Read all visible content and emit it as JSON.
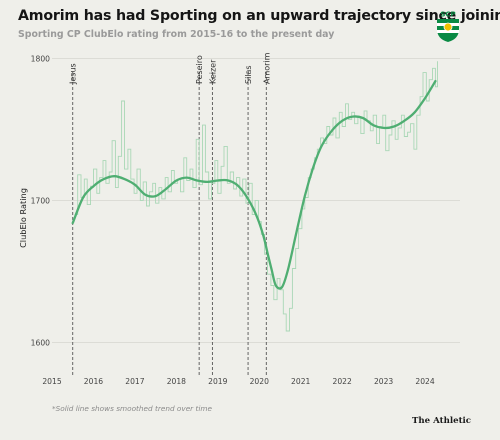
{
  "header": {
    "title": "Amorim has had Sporting on an upward trajectory since joining",
    "subtitle": "Sporting CP ClubElo rating from 2015-16 to the present day"
  },
  "footer": {
    "note": "*Solid line shows smoothed trend over time",
    "brand": "The Athletic"
  },
  "logo": {
    "text": "SCP",
    "icon": "sporting-cp-crest-icon",
    "primary_color": "#0a8a44"
  },
  "colors": {
    "background": "#efefea",
    "raw_line": "#a9d7b6",
    "trend_line": "#4fae72",
    "gridline": "#d6d6d0",
    "manager_line": "#555555"
  },
  "chart_data": {
    "type": "line",
    "title": "Amorim has had Sporting on an upward trajectory since joining",
    "subtitle": "Sporting CP ClubElo rating from 2015-16 to the present day",
    "xlabel": "",
    "ylabel": "ClubElo Rating",
    "xlim": [
      2015.0,
      2024.65
    ],
    "ylim": [
      1577,
      1808
    ],
    "x_ticks": [
      "2015",
      "2016",
      "2017",
      "2018",
      "2019",
      "2020",
      "2021",
      "2022",
      "2023",
      "2024"
    ],
    "y_ticks": [
      "1600",
      "1700",
      "1800"
    ],
    "grid": "horizontal",
    "annotations": [
      {
        "label": "Jesus",
        "x": 2015.5
      },
      {
        "label": "Peseiro",
        "x": 2018.55
      },
      {
        "label": "Keizer",
        "x": 2018.87
      },
      {
        "label": "Silas",
        "x": 2019.73
      },
      {
        "label": "Amorim",
        "x": 2020.17
      }
    ],
    "series": [
      {
        "style": "trend-solid",
        "x": [
          2015.5,
          2015.75,
          2016.0,
          2016.25,
          2016.5,
          2016.75,
          2017.0,
          2017.25,
          2017.5,
          2017.75,
          2018.0,
          2018.25,
          2018.5,
          2018.75,
          2019.0,
          2019.25,
          2019.5,
          2019.75,
          2019.95,
          2020.1,
          2020.2,
          2020.3,
          2020.4,
          2020.55,
          2020.7,
          2020.9,
          2021.1,
          2021.3,
          2021.5,
          2021.75,
          2022.0,
          2022.25,
          2022.5,
          2022.75,
          2023.0,
          2023.25,
          2023.5,
          2023.75,
          2024.0,
          2024.25
        ],
        "values": [
          1684,
          1702,
          1710,
          1715,
          1717,
          1715,
          1711,
          1704,
          1703,
          1708,
          1714,
          1716,
          1714,
          1713,
          1714,
          1714,
          1710,
          1700,
          1688,
          1675,
          1663,
          1651,
          1640,
          1639,
          1652,
          1678,
          1703,
          1723,
          1738,
          1749,
          1756,
          1759,
          1758,
          1753,
          1751,
          1752,
          1756,
          1762,
          1772,
          1784
        ]
      },
      {
        "style": "raw-thin",
        "x": [
          2015.55,
          2015.62,
          2015.7,
          2015.78,
          2015.85,
          2015.93,
          2016.0,
          2016.08,
          2016.15,
          2016.23,
          2016.3,
          2016.38,
          2016.45,
          2016.53,
          2016.6,
          2016.68,
          2016.75,
          2016.83,
          2016.9,
          2016.98,
          2017.05,
          2017.13,
          2017.2,
          2017.28,
          2017.35,
          2017.43,
          2017.5,
          2017.58,
          2017.65,
          2017.73,
          2017.8,
          2017.88,
          2017.95,
          2018.03,
          2018.1,
          2018.18,
          2018.25,
          2018.33,
          2018.4,
          2018.48,
          2018.55,
          2018.63,
          2018.7,
          2018.78,
          2018.85,
          2018.93,
          2019.0,
          2019.08,
          2019.15,
          2019.23,
          2019.3,
          2019.38,
          2019.45,
          2019.53,
          2019.6,
          2019.68,
          2019.75,
          2019.83,
          2019.9,
          2019.98,
          2020.05,
          2020.13,
          2020.2,
          2020.28,
          2020.35,
          2020.43,
          2020.5,
          2020.58,
          2020.65,
          2020.73,
          2020.8,
          2020.88,
          2020.95,
          2021.03,
          2021.1,
          2021.18,
          2021.25,
          2021.33,
          2021.4,
          2021.48,
          2021.55,
          2021.63,
          2021.7,
          2021.78,
          2021.85,
          2021.93,
          2022.0,
          2022.08,
          2022.15,
          2022.23,
          2022.3,
          2022.38,
          2022.45,
          2022.53,
          2022.6,
          2022.68,
          2022.75,
          2022.83,
          2022.9,
          2022.98,
          2023.05,
          2023.13,
          2023.2,
          2023.28,
          2023.35,
          2023.43,
          2023.5,
          2023.58,
          2023.65,
          2023.73,
          2023.8,
          2023.88,
          2023.95,
          2024.03,
          2024.1,
          2024.18,
          2024.25,
          2024.3
        ],
        "values": [
          1690,
          1718,
          1702,
          1715,
          1697,
          1710,
          1722,
          1705,
          1716,
          1728,
          1712,
          1720,
          1742,
          1709,
          1731,
          1770,
          1722,
          1736,
          1715,
          1705,
          1722,
          1700,
          1713,
          1696,
          1706,
          1712,
          1698,
          1709,
          1701,
          1716,
          1706,
          1721,
          1712,
          1715,
          1706,
          1730,
          1714,
          1722,
          1709,
          1743,
          1711,
          1753,
          1720,
          1701,
          1712,
          1728,
          1705,
          1724,
          1738,
          1712,
          1720,
          1708,
          1716,
          1703,
          1715,
          1698,
          1712,
          1690,
          1700,
          1685,
          1676,
          1662,
          1648,
          1640,
          1630,
          1645,
          1637,
          1620,
          1608,
          1624,
          1652,
          1666,
          1680,
          1694,
          1702,
          1716,
          1722,
          1730,
          1736,
          1744,
          1740,
          1752,
          1746,
          1758,
          1744,
          1762,
          1752,
          1768,
          1757,
          1762,
          1754,
          1759,
          1747,
          1763,
          1756,
          1749,
          1760,
          1740,
          1752,
          1760,
          1735,
          1746,
          1756,
          1743,
          1751,
          1760,
          1745,
          1748,
          1754,
          1736,
          1760,
          1773,
          1790,
          1770,
          1785,
          1793,
          1780,
          1798
        ]
      }
    ]
  }
}
